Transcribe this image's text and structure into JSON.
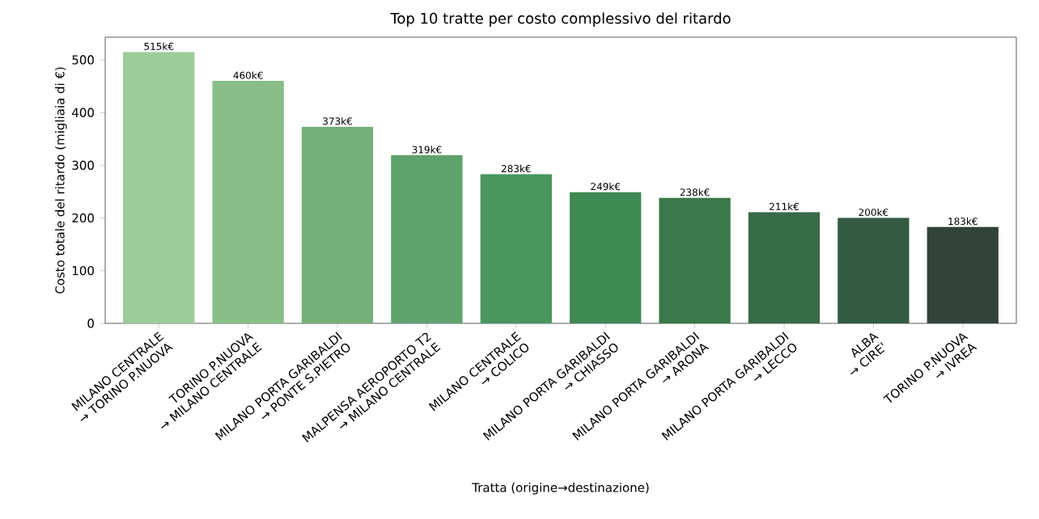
{
  "chart_data": {
    "type": "bar",
    "title": "Top 10 tratte per costo complessivo del ritardo",
    "xlabel": "Tratta (origine→destinazione)",
    "ylabel": "Costo totale del ritardo (migliaia di €)",
    "categories": [
      "MILANO CENTRALE\n→ TORINO P.NUOVA",
      "TORINO P.NUOVA\n→ MILANO CENTRALE",
      "MILANO PORTA GARIBALDI\n→ PONTE S.PIETRO",
      "MALPENSA AEROPORTO T2\n→ MILANO CENTRALE",
      "MILANO CENTRALE\n→ COLICO",
      "MILANO PORTA GARIBALDI\n→ CHIASSO",
      "MILANO PORTA GARIBALDI\n→ ARONA",
      "MILANO PORTA GARIBALDI\n→ LECCO",
      "ALBA\n→ CIRE'",
      "TORINO P.NUOVA\n→ IVREA"
    ],
    "values": [
      515,
      460,
      373,
      319,
      283,
      249,
      238,
      211,
      200,
      183
    ],
    "value_labels": [
      "515k€",
      "460k€",
      "373k€",
      "319k€",
      "283k€",
      "249k€",
      "238k€",
      "211k€",
      "200k€",
      "183k€"
    ],
    "colors": [
      "#9ecb9a",
      "#88bd88",
      "#74b07a",
      "#5fa36c",
      "#4a965e",
      "#3f8a53",
      "#3a7a4c",
      "#376a47",
      "#345a41",
      "#32443a"
    ],
    "ylim": [
      0,
      543
    ],
    "yticks": [
      0,
      100,
      200,
      300,
      400,
      500
    ]
  }
}
